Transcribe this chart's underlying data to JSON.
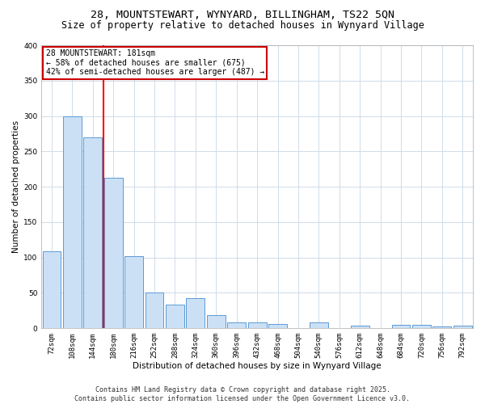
{
  "title_line1": "28, MOUNTSTEWART, WYNYARD, BILLINGHAM, TS22 5QN",
  "title_line2": "Size of property relative to detached houses in Wynyard Village",
  "xlabel": "Distribution of detached houses by size in Wynyard Village",
  "ylabel": "Number of detached properties",
  "bar_color": "#cce0f5",
  "bar_edge_color": "#5b9bd5",
  "categories": [
    "72sqm",
    "108sqm",
    "144sqm",
    "180sqm",
    "216sqm",
    "252sqm",
    "288sqm",
    "324sqm",
    "360sqm",
    "396sqm",
    "432sqm",
    "468sqm",
    "504sqm",
    "540sqm",
    "576sqm",
    "612sqm",
    "648sqm",
    "684sqm",
    "720sqm",
    "756sqm",
    "792sqm"
  ],
  "values": [
    109,
    299,
    270,
    213,
    102,
    51,
    33,
    42,
    18,
    8,
    8,
    6,
    0,
    8,
    0,
    4,
    0,
    5,
    5,
    2,
    4
  ],
  "ylim": [
    0,
    400
  ],
  "yticks": [
    0,
    50,
    100,
    150,
    200,
    250,
    300,
    350,
    400
  ],
  "property_label": "28 MOUNTSTEWART: 181sqm",
  "annotation_line2": "← 58% of detached houses are smaller (675)",
  "annotation_line3": "42% of semi-detached houses are larger (487) →",
  "vline_x": 2.5,
  "annotation_box_facecolor": "#ffffff",
  "annotation_box_edgecolor": "#cc0000",
  "footer_text": "Contains HM Land Registry data © Crown copyright and database right 2025.\nContains public sector information licensed under the Open Government Licence v3.0.",
  "background_color": "#ffffff",
  "plot_bg_color": "#ffffff",
  "grid_color": "#d0dce8",
  "title_fontsize": 9.5,
  "subtitle_fontsize": 8.5,
  "axis_label_fontsize": 7.5,
  "tick_fontsize": 6.5,
  "annotation_fontsize": 7,
  "footer_fontsize": 6
}
